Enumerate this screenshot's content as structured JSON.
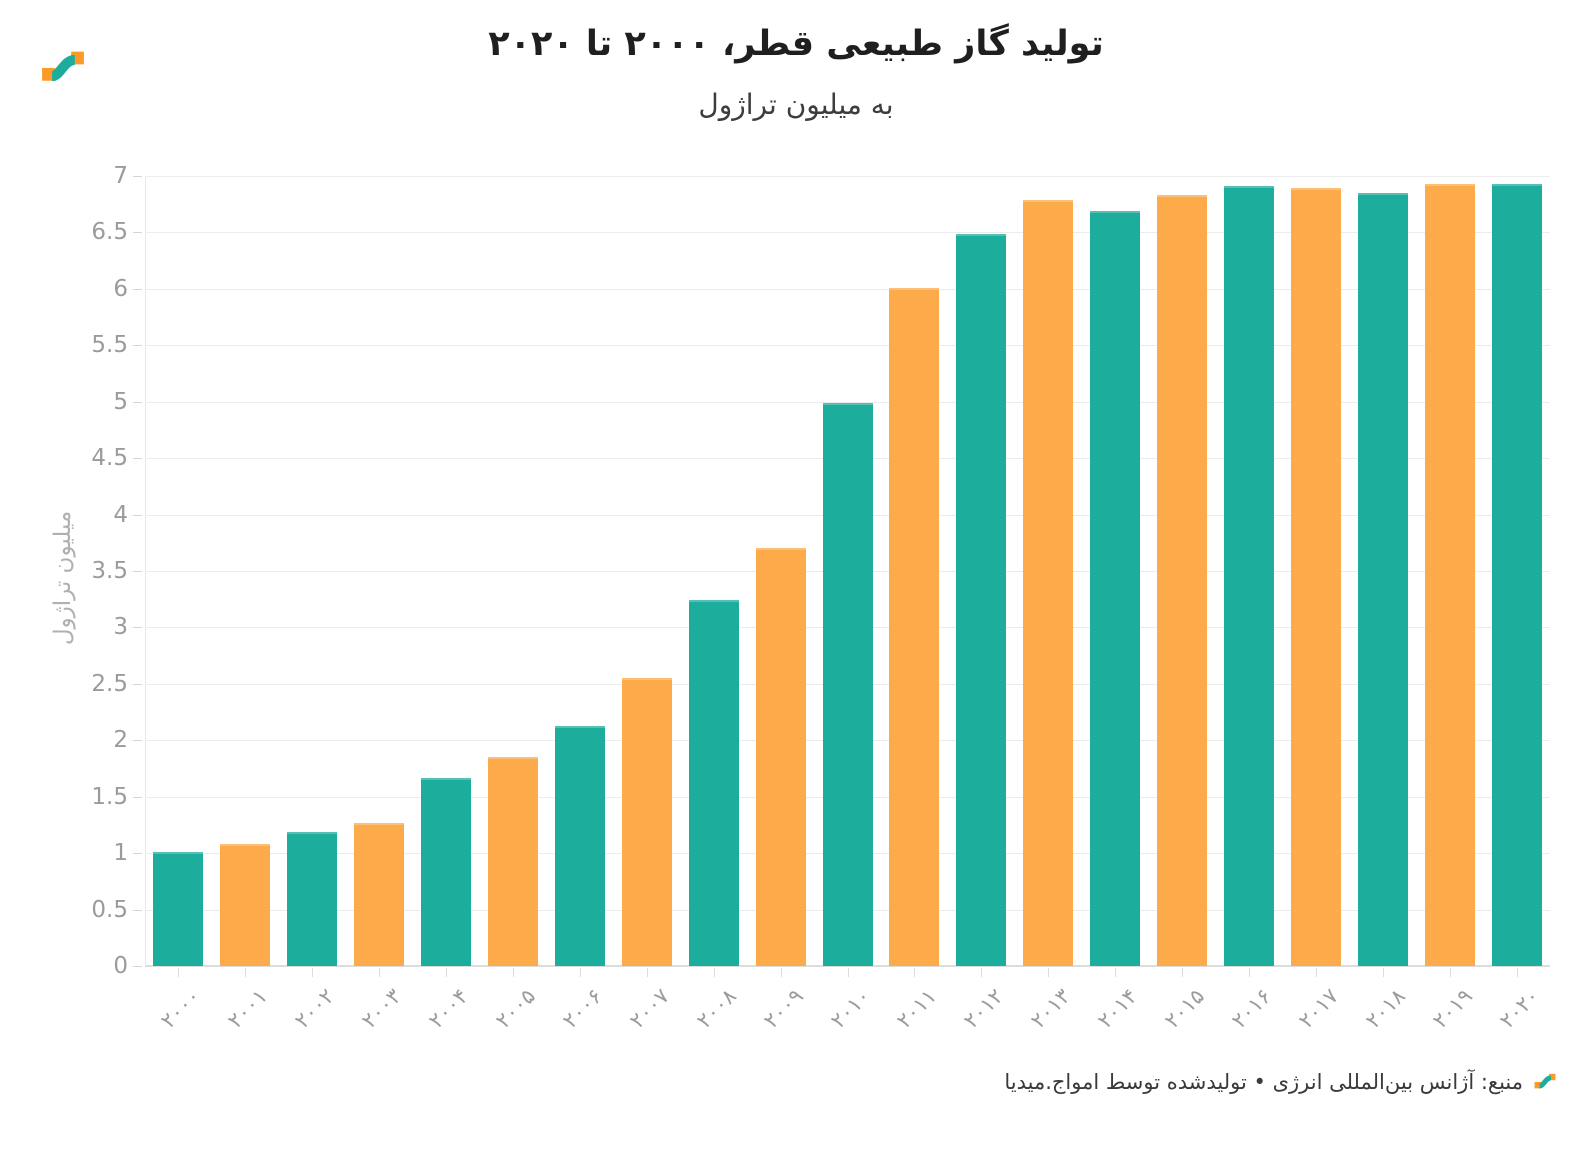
{
  "header": {
    "title": "تولید گاز طبیعی قطر، ۲۰۰۰ تا ۲۰۲۰",
    "subtitle": "به میلیون تراژول"
  },
  "y_axis": {
    "title": "میلیون تراژول",
    "tick_labels": [
      "7",
      "6.5",
      "6",
      "5.5",
      "5",
      "4.5",
      "4",
      "3.5",
      "3",
      "2.5",
      "2",
      "1.5",
      "1",
      "0.5",
      "0"
    ]
  },
  "chart_data": {
    "type": "bar",
    "title": "تولید گاز طبیعی قطر، ۲۰۰۰ تا ۲۰۲۰",
    "subtitle": "به میلیون تراژول",
    "ylabel": "میلیون تراژول",
    "xlabel": "",
    "ylim": [
      0,
      7
    ],
    "grid": "horizontal every 0.5, light gray",
    "legend": "none",
    "categories": [
      "۲۰۰۰",
      "۲۰۰۱",
      "۲۰۰۲",
      "۲۰۰۳",
      "۲۰۰۴",
      "۲۰۰۵",
      "۲۰۰۶",
      "۲۰۰۷",
      "۲۰۰۸",
      "۲۰۰۹",
      "۲۰۱۰",
      "۲۰۱۱",
      "۲۰۱۲",
      "۲۰۱۳",
      "۲۰۱۴",
      "۲۰۱۵",
      "۲۰۱۶",
      "۲۰۱۷",
      "۲۰۱۸",
      "۲۰۱۹",
      "۲۰۲۰"
    ],
    "values": [
      1.01,
      1.08,
      1.19,
      1.27,
      1.67,
      1.85,
      2.13,
      2.55,
      3.24,
      3.7,
      4.99,
      6.01,
      6.49,
      6.79,
      6.69,
      6.83,
      6.91,
      6.89,
      6.85,
      6.93,
      6.93
    ],
    "bar_color_even": "#1CAD9D",
    "bar_color_odd": "#FDAA4A"
  },
  "colors": {
    "teal": "#1CAD9D",
    "orange": "#FDAA4A",
    "gridline": "#ececec",
    "axis_text": "#9b9b9b",
    "title_text": "#1f1f1f"
  },
  "footer": {
    "source": "منبع: آژانس بین‌المللی انرژی • تولیدشده توسط امواج.میدیا"
  }
}
